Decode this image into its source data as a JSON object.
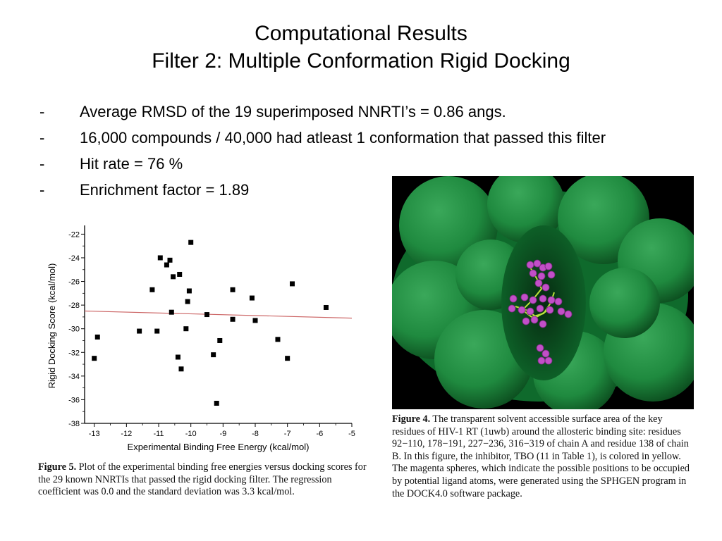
{
  "slide": {
    "title_line1": "Computational Results",
    "title_line2": "Filter 2: Multiple Conformation Rigid Docking",
    "bullets": [
      {
        "dash": "-",
        "text": "Average RMSD of the 19 superimposed NNRTI’s = 0.86 angs."
      },
      {
        "dash": "-",
        "text": "16,000 compounds / 40,000 had atleast 1 conformation that passed this filter"
      },
      {
        "dash": "-",
        "text": "Hit rate = 76 %"
      },
      {
        "dash": "-",
        "text": "Enrichment factor = 1.89"
      }
    ]
  },
  "figure5": {
    "caption_label": "Figure 5.",
    "caption_text": "Plot of the experimental binding free energies versus docking scores for the 29 known NNRTIs that passed the rigid docking filter. The regression coefficient was 0.0 and the standard deviation was 3.3 kcal/mol."
  },
  "figure4": {
    "caption_label": "Figure 4.",
    "caption_text": "The transparent solvent accessible surface area of the key residues of HIV-1 RT (1uwb) around the allosteric binding site: residues 92−110, 178−191, 227−236, 316−319 of chain A and residue 138 of chain B. In this figure, the inhibitor, TBO (11 in Table 1), is colored in yellow. The magenta spheres, which indicate the possible positions to be occupied by potential ligand atoms, were generated using the SPHGEN program in the DOCK4.0 software package.",
    "colors": {
      "surface": "#1f8a3f",
      "surface_dark": "#0d5a24",
      "spheres": "#c24fc8",
      "ligand": "#b9e23a",
      "background": "#000000"
    }
  },
  "chart_data": {
    "type": "scatter",
    "title": "",
    "xlabel": "Experimental Binding Free Energy (kcal/mol)",
    "ylabel": "Rigid Docking Score (kcal/mol)",
    "xlim": [
      -13.3,
      -5
    ],
    "ylim": [
      -38,
      -21.5
    ],
    "xticks": [
      -13,
      -12,
      -11,
      -10,
      -9,
      -8,
      -7,
      -6,
      -5
    ],
    "yticks": [
      -22,
      -24,
      -26,
      -28,
      -30,
      -32,
      -34,
      -36,
      -38
    ],
    "grid": false,
    "series": [
      {
        "marker": "square",
        "color": "#000000",
        "x": [
          -13.0,
          -12.9,
          -11.6,
          -11.2,
          -11.05,
          -10.95,
          -10.75,
          -10.65,
          -10.6,
          -10.55,
          -10.4,
          -10.35,
          -10.3,
          -10.15,
          -10.1,
          -10.05,
          -10.0,
          -9.5,
          -9.3,
          -9.2,
          -9.1,
          -8.7,
          -8.7,
          -8.1,
          -8.0,
          -7.3,
          -7.0,
          -6.85,
          -5.8
        ],
        "y": [
          -32.5,
          -30.7,
          -30.2,
          -26.7,
          -30.2,
          -24.0,
          -24.6,
          -24.2,
          -28.6,
          -25.6,
          -32.4,
          -25.4,
          -33.4,
          -30.0,
          -27.7,
          -26.8,
          -22.7,
          -28.8,
          -32.2,
          -36.3,
          -31.0,
          -26.7,
          -29.2,
          -27.4,
          -29.3,
          -30.9,
          -32.5,
          -26.2,
          -28.2
        ]
      }
    ],
    "regression": {
      "x": [
        -13.3,
        -5
      ],
      "y": [
        -28.5,
        -29.1
      ],
      "color": "#cc6666"
    }
  }
}
